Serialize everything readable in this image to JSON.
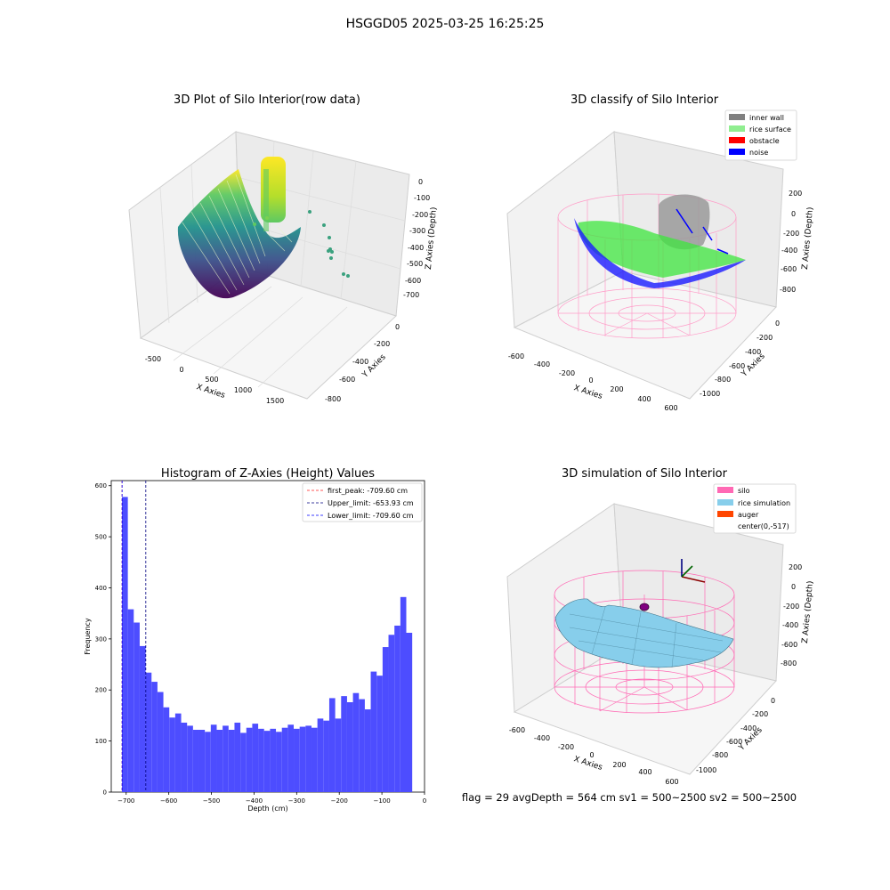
{
  "suptitle": "HSGGD05 2025-03-25 16:25:25",
  "colors": {
    "hist_bar": "#4d4dff",
    "first_peak": "#ff2020",
    "upper_limit": "#000080",
    "lower_limit": "#0000ff",
    "silo": "#ff69b4",
    "rice_simulation": "#87ceeb",
    "auger": "#ff4500",
    "inner_wall": "#808080",
    "rice_surface": "#90ee90",
    "obstacle": "#ff0000",
    "noise": "#0000ff"
  },
  "chart_data": [
    {
      "type": "scatter",
      "title": "3D Plot of Silo Interior(row data)",
      "xlabel": "X Axies",
      "ylabel": "Y Axies",
      "zlabel": "Z Axies (Depth)",
      "x_ticks": [
        "-500",
        "0",
        "500",
        "1000",
        "1500"
      ],
      "y_ticks": [
        "0",
        "-200",
        "-400",
        "-600",
        "-800"
      ],
      "z_ticks": [
        "0",
        "-100",
        "-200",
        "-300",
        "-400",
        "-500",
        "-600",
        "-700"
      ],
      "colormap": "viridis",
      "grid": true
    },
    {
      "type": "scatter",
      "title": "3D classify of Silo Interior",
      "xlabel": "X Axies",
      "ylabel": "Y Axies",
      "zlabel": "Z Axies (Depth)",
      "x_ticks": [
        "-600",
        "-400",
        "-200",
        "0",
        "200",
        "400",
        "600"
      ],
      "y_ticks": [
        "0",
        "-200",
        "-400",
        "-600",
        "-800",
        "-1000"
      ],
      "z_ticks": [
        "200",
        "0",
        "-200",
        "-400",
        "-600",
        "-800"
      ],
      "legend": [
        "inner wall",
        "rice surface",
        "obstacle",
        "noise"
      ],
      "legend_loc": "top-right",
      "grid": true
    },
    {
      "type": "bar",
      "title": "Histogram of Z-Axies (Height) Values",
      "xlabel": "Depth (cm)",
      "ylabel": "Frequency",
      "xlim": [
        -735,
        0
      ],
      "ylim": [
        0,
        610
      ],
      "x_ticks": [
        -700,
        -600,
        -500,
        -400,
        -300,
        -200,
        -100,
        0
      ],
      "y_ticks": [
        0,
        100,
        200,
        300,
        400,
        500,
        600
      ],
      "bin_start": -710,
      "bin_width": 13.9,
      "values": [
        578,
        358,
        332,
        286,
        234,
        216,
        196,
        166,
        146,
        154,
        136,
        130,
        122,
        122,
        118,
        132,
        122,
        130,
        122,
        136,
        116,
        126,
        134,
        124,
        120,
        124,
        118,
        126,
        132,
        124,
        128,
        130,
        126,
        144,
        140,
        184,
        144,
        188,
        176,
        194,
        182,
        162,
        236,
        228,
        284,
        308,
        326,
        382,
        312
      ],
      "vlines": [
        {
          "label": "first_peak: -709.60 cm",
          "x": -709.6,
          "color": "#ff2020"
        },
        {
          "label": "Upper_limit: -653.93 cm",
          "x": -653.93,
          "color": "#000080"
        },
        {
          "label": "Lower_limit: -709.60 cm",
          "x": -709.6,
          "color": "#0000ff"
        }
      ],
      "legend_loc": "top-right"
    },
    {
      "type": "surface",
      "title": "3D simulation of Silo Interior",
      "xlabel": "X Axies",
      "ylabel": "Y Axies",
      "zlabel": "Z Axies (Depth)",
      "x_ticks": [
        "-600",
        "-400",
        "-200",
        "0",
        "200",
        "400",
        "600"
      ],
      "y_ticks": [
        "0",
        "-200",
        "-400",
        "-600",
        "-800",
        "-1000"
      ],
      "z_ticks": [
        "200",
        "0",
        "-200",
        "-400",
        "-600",
        "-800"
      ],
      "legend": [
        "silo",
        "rice simulation",
        "auger",
        "center(0,-517)"
      ],
      "legend_loc": "top-right",
      "grid": true
    }
  ],
  "footer": "flag = 29  avgDepth = 564 cm  sv1 = 500~2500  sv2 = 500~2500"
}
